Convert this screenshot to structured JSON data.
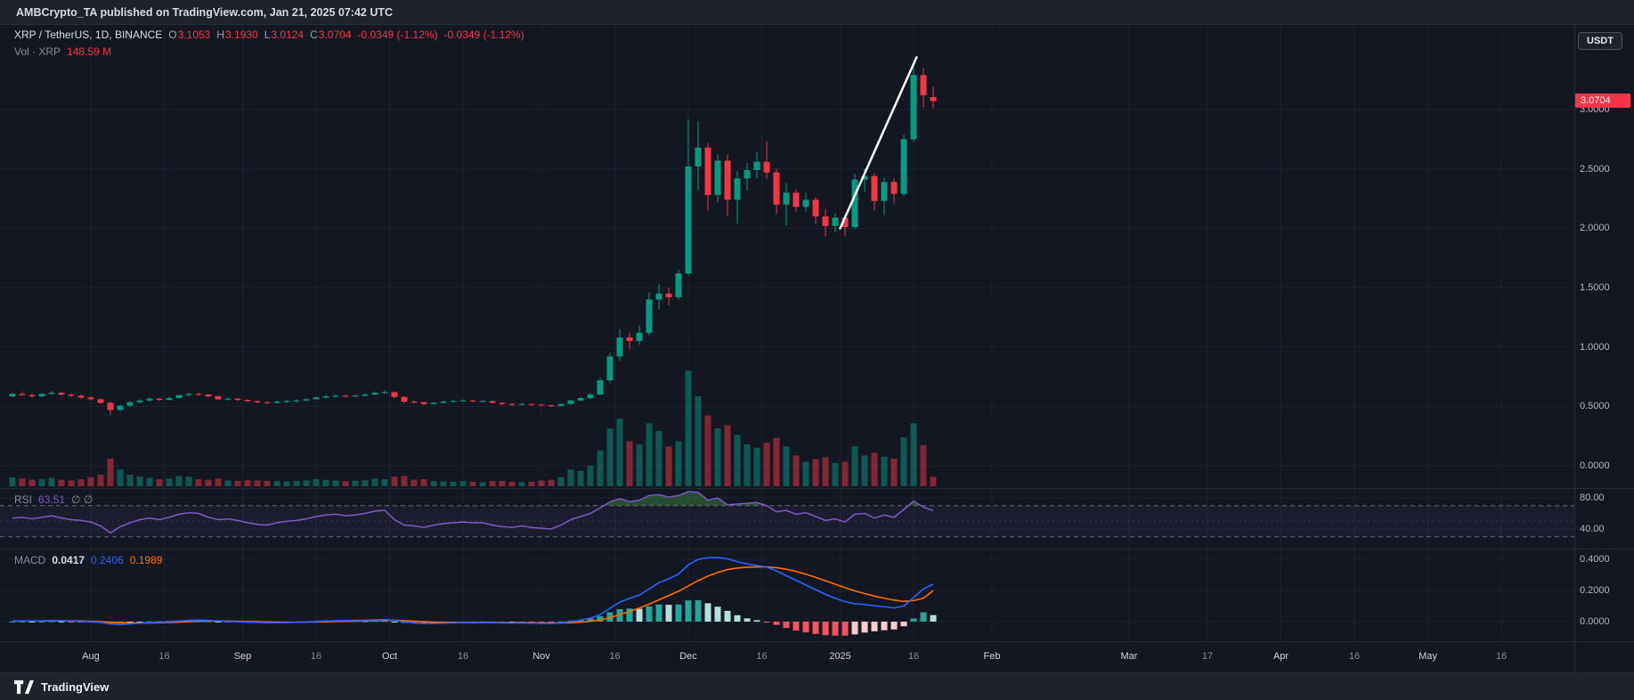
{
  "header": {
    "published_line": "AMBCrypto_TA published on TradingView.com, Jan 21, 2025 07:42 UTC"
  },
  "toolbar": {
    "currency_button": "USDT"
  },
  "legend": {
    "symbol": "XRP / TetherUS, 1D, BINANCE",
    "ohlc": [
      {
        "key": "O",
        "value": "3.1053"
      },
      {
        "key": "H",
        "value": "3.1930"
      },
      {
        "key": "L",
        "value": "3.0124"
      },
      {
        "key": "C",
        "value": "3.0704"
      }
    ],
    "change": "-0.0349 (-1.12%)",
    "change2": "-0.0349 (-1.12%)",
    "volume_label": "Vol · XRP",
    "volume_value": "148.59 M"
  },
  "rsi_panel": {
    "label": "RSI",
    "value": "63.51",
    "na_markers": "∅ ∅",
    "ticks": [
      {
        "text": "80.00",
        "value": 80
      },
      {
        "text": "40.00",
        "value": 40
      }
    ],
    "bands": [
      70,
      30
    ],
    "midline": 50
  },
  "macd_panel": {
    "label": "MACD",
    "histogram_value": "0.0417",
    "macd_value": "0.2406",
    "signal_value": "0.1989",
    "ticks": [
      {
        "text": "0.4000",
        "value": 0.4
      },
      {
        "text": "0.2000",
        "value": 0.2
      },
      {
        "text": "0.0000",
        "value": 0.0
      }
    ]
  },
  "price_scale": {
    "ticks": [
      {
        "text": "3.0000",
        "value": 3.0
      },
      {
        "text": "2.5000",
        "value": 2.5
      },
      {
        "text": "2.0000",
        "value": 2.0
      },
      {
        "text": "1.5000",
        "value": 1.5
      },
      {
        "text": "1.0000",
        "value": 1.0
      },
      {
        "text": "0.5000",
        "value": 0.5
      },
      {
        "text": "0.0000",
        "value": 0.0
      }
    ],
    "last_price_label": "3.0704",
    "last_price": 3.0704
  },
  "time_axis": [
    {
      "text": "Aug",
      "i": 8,
      "major": true
    },
    {
      "text": "16",
      "i": 15.5,
      "major": false
    },
    {
      "text": "Sep",
      "i": 23.5,
      "major": true
    },
    {
      "text": "16",
      "i": 31,
      "major": false
    },
    {
      "text": "Oct",
      "i": 38.5,
      "major": true
    },
    {
      "text": "16",
      "i": 46,
      "major": false
    },
    {
      "text": "Nov",
      "i": 54,
      "major": true
    },
    {
      "text": "16",
      "i": 61.5,
      "major": false
    },
    {
      "text": "Dec",
      "i": 69,
      "major": true
    },
    {
      "text": "16",
      "i": 76.5,
      "major": false
    },
    {
      "text": "2025",
      "i": 84.5,
      "major": true
    },
    {
      "text": "16",
      "i": 92,
      "major": false
    },
    {
      "text": "Feb",
      "i": 100,
      "major": true
    },
    {
      "text": "Mar",
      "i": 114,
      "major": true
    },
    {
      "text": "17",
      "i": 122,
      "major": false
    },
    {
      "text": "Apr",
      "i": 129.5,
      "major": true
    },
    {
      "text": "16",
      "i": 137,
      "major": false
    },
    {
      "text": "May",
      "i": 144.5,
      "major": true
    },
    {
      "text": "16",
      "i": 152,
      "major": false
    }
  ],
  "footer": {
    "brand": "TradingView"
  },
  "colors": {
    "background": "#131722",
    "panel_bar": "#1e222d",
    "grid": "#1c2230",
    "axis_text": "#b2b5be",
    "up": "#089981",
    "down": "#f23645",
    "volume_up": "rgba(8,153,129,0.5)",
    "volume_down": "rgba(242,54,69,0.5)",
    "rsi_line": "#7e57c2",
    "rsi_overbought_fill": "rgba(76,175,80,0.35)",
    "rsi_band_fill": "rgba(126,87,194,0.08)",
    "macd_line": "#2962ff",
    "signal_line": "#ff6d00",
    "macd_hist": {
      "grow_up": "#26a69a",
      "fall_up": "#b2dfdb",
      "fall_down": "#f7525f",
      "grow_down": "#fccbcd"
    },
    "price_tag_bg": "#f23645",
    "trendline": "#ffffff"
  },
  "chart_data": {
    "type": "candlestick",
    "symbol": "XRP/USDT",
    "exchange": "BINANCE",
    "interval": "1D",
    "note": "values estimated from chart pixels; series sampled every ~2 days",
    "sampled_every_days": 2,
    "start_date": "2024-07-16",
    "end_date": "2025-01-21",
    "price_axis_range": [
      0,
      3.7
    ],
    "volume_units": "millions of XRP",
    "volume_max": 1800,
    "candles": [
      [
        0.585,
        0.615,
        0.575,
        0.605,
        140
      ],
      [
        0.605,
        0.625,
        0.59,
        0.595,
        120
      ],
      [
        0.595,
        0.61,
        0.575,
        0.585,
        100
      ],
      [
        0.585,
        0.615,
        0.58,
        0.605,
        110
      ],
      [
        0.605,
        0.63,
        0.6,
        0.615,
        130
      ],
      [
        0.615,
        0.62,
        0.59,
        0.6,
        100
      ],
      [
        0.6,
        0.61,
        0.58,
        0.59,
        90
      ],
      [
        0.59,
        0.6,
        0.565,
        0.575,
        110
      ],
      [
        0.575,
        0.585,
        0.55,
        0.56,
        140
      ],
      [
        0.56,
        0.565,
        0.52,
        0.53,
        180
      ],
      [
        0.53,
        0.54,
        0.425,
        0.47,
        430
      ],
      [
        0.47,
        0.515,
        0.46,
        0.505,
        260
      ],
      [
        0.505,
        0.545,
        0.5,
        0.535,
        180
      ],
      [
        0.535,
        0.56,
        0.525,
        0.55,
        150
      ],
      [
        0.55,
        0.575,
        0.54,
        0.565,
        130
      ],
      [
        0.565,
        0.57,
        0.545,
        0.555,
        110
      ],
      [
        0.555,
        0.58,
        0.55,
        0.57,
        120
      ],
      [
        0.57,
        0.6,
        0.565,
        0.595,
        160
      ],
      [
        0.595,
        0.615,
        0.585,
        0.605,
        150
      ],
      [
        0.605,
        0.615,
        0.59,
        0.6,
        110
      ],
      [
        0.6,
        0.605,
        0.575,
        0.585,
        100
      ],
      [
        0.585,
        0.59,
        0.555,
        0.56,
        120
      ],
      [
        0.56,
        0.575,
        0.55,
        0.565,
        90
      ],
      [
        0.565,
        0.57,
        0.545,
        0.555,
        85
      ],
      [
        0.555,
        0.56,
        0.535,
        0.545,
        95
      ],
      [
        0.545,
        0.55,
        0.525,
        0.535,
        90
      ],
      [
        0.535,
        0.545,
        0.52,
        0.53,
        85
      ],
      [
        0.53,
        0.55,
        0.525,
        0.54,
        80
      ],
      [
        0.54,
        0.555,
        0.53,
        0.545,
        75
      ],
      [
        0.545,
        0.56,
        0.535,
        0.55,
        85
      ],
      [
        0.55,
        0.57,
        0.545,
        0.56,
        95
      ],
      [
        0.56,
        0.585,
        0.555,
        0.575,
        110
      ],
      [
        0.575,
        0.595,
        0.565,
        0.585,
        100
      ],
      [
        0.585,
        0.6,
        0.575,
        0.59,
        90
      ],
      [
        0.59,
        0.6,
        0.575,
        0.585,
        80
      ],
      [
        0.585,
        0.6,
        0.58,
        0.59,
        85
      ],
      [
        0.59,
        0.61,
        0.585,
        0.6,
        95
      ],
      [
        0.6,
        0.625,
        0.595,
        0.615,
        120
      ],
      [
        0.615,
        0.635,
        0.605,
        0.62,
        110
      ],
      [
        0.62,
        0.625,
        0.57,
        0.58,
        150
      ],
      [
        0.58,
        0.585,
        0.53,
        0.54,
        160
      ],
      [
        0.54,
        0.55,
        0.525,
        0.535,
        100
      ],
      [
        0.535,
        0.54,
        0.51,
        0.52,
        110
      ],
      [
        0.52,
        0.535,
        0.515,
        0.53,
        80
      ],
      [
        0.53,
        0.55,
        0.525,
        0.54,
        75
      ],
      [
        0.54,
        0.555,
        0.535,
        0.545,
        70
      ],
      [
        0.545,
        0.56,
        0.54,
        0.55,
        80
      ],
      [
        0.55,
        0.555,
        0.535,
        0.545,
        70
      ],
      [
        0.545,
        0.555,
        0.54,
        0.545,
        60
      ],
      [
        0.545,
        0.55,
        0.525,
        0.53,
        80
      ],
      [
        0.53,
        0.535,
        0.51,
        0.52,
        85
      ],
      [
        0.52,
        0.53,
        0.505,
        0.515,
        70
      ],
      [
        0.515,
        0.53,
        0.51,
        0.52,
        65
      ],
      [
        0.52,
        0.525,
        0.505,
        0.515,
        70
      ],
      [
        0.515,
        0.52,
        0.5,
        0.51,
        90
      ],
      [
        0.51,
        0.515,
        0.495,
        0.505,
        100
      ],
      [
        0.505,
        0.525,
        0.5,
        0.52,
        140
      ],
      [
        0.52,
        0.555,
        0.515,
        0.55,
        260
      ],
      [
        0.55,
        0.58,
        0.545,
        0.57,
        240
      ],
      [
        0.57,
        0.615,
        0.56,
        0.6,
        320
      ],
      [
        0.6,
        0.74,
        0.595,
        0.72,
        560
      ],
      [
        0.72,
        0.95,
        0.7,
        0.92,
        900
      ],
      [
        0.92,
        1.15,
        0.88,
        1.08,
        1050
      ],
      [
        1.08,
        1.12,
        0.98,
        1.05,
        700
      ],
      [
        1.05,
        1.18,
        1.02,
        1.12,
        650
      ],
      [
        1.12,
        1.46,
        1.1,
        1.4,
        980
      ],
      [
        1.4,
        1.53,
        1.32,
        1.45,
        860
      ],
      [
        1.45,
        1.5,
        1.35,
        1.42,
        620
      ],
      [
        1.42,
        1.65,
        1.4,
        1.62,
        700
      ],
      [
        1.62,
        2.92,
        1.6,
        2.52,
        1800
      ],
      [
        2.52,
        2.9,
        2.32,
        2.68,
        1400
      ],
      [
        2.68,
        2.72,
        2.15,
        2.28,
        1100
      ],
      [
        2.28,
        2.62,
        2.22,
        2.57,
        900
      ],
      [
        2.57,
        2.62,
        2.1,
        2.24,
        950
      ],
      [
        2.24,
        2.48,
        2.04,
        2.42,
        800
      ],
      [
        2.42,
        2.55,
        2.32,
        2.49,
        650
      ],
      [
        2.49,
        2.64,
        2.42,
        2.56,
        600
      ],
      [
        2.56,
        2.73,
        2.42,
        2.47,
        680
      ],
      [
        2.47,
        2.5,
        2.12,
        2.2,
        750
      ],
      [
        2.2,
        2.38,
        2.02,
        2.3,
        620
      ],
      [
        2.3,
        2.33,
        2.14,
        2.18,
        480
      ],
      [
        2.18,
        2.3,
        2.14,
        2.24,
        380
      ],
      [
        2.24,
        2.26,
        2.04,
        2.1,
        420
      ],
      [
        2.1,
        2.16,
        1.93,
        2.02,
        450
      ],
      [
        2.02,
        2.13,
        1.97,
        2.09,
        360
      ],
      [
        2.09,
        2.11,
        1.94,
        2.01,
        380
      ],
      [
        2.01,
        2.46,
        1.99,
        2.41,
        620
      ],
      [
        2.41,
        2.5,
        2.31,
        2.44,
        480
      ],
      [
        2.44,
        2.46,
        2.15,
        2.23,
        520
      ],
      [
        2.23,
        2.43,
        2.11,
        2.39,
        460
      ],
      [
        2.39,
        2.42,
        2.21,
        2.29,
        430
      ],
      [
        2.29,
        2.79,
        2.27,
        2.75,
        760
      ],
      [
        2.75,
        3.39,
        2.73,
        3.29,
        980
      ],
      [
        3.29,
        3.35,
        3.02,
        3.12,
        640
      ],
      [
        3.1053,
        3.193,
        3.0124,
        3.0704,
        148.59
      ]
    ],
    "indicators": {
      "rsi": {
        "values": [
          54,
          55,
          53,
          55,
          57,
          54,
          52,
          51,
          49,
          44,
          35,
          43,
          48,
          52,
          54,
          52,
          55,
          59,
          61,
          60,
          55,
          52,
          53,
          51,
          48,
          46,
          45,
          48,
          50,
          51,
          53,
          56,
          58,
          59,
          57,
          58,
          60,
          63,
          64,
          52,
          45,
          44,
          42,
          45,
          47,
          48,
          49,
          48,
          48,
          45,
          43,
          42,
          44,
          42,
          41,
          40,
          45,
          52,
          56,
          60,
          67,
          75,
          79,
          75,
          77,
          83,
          84,
          81,
          83,
          88,
          87,
          77,
          80,
          71,
          72,
          73,
          74,
          70,
          62,
          64,
          59,
          61,
          56,
          51,
          53,
          49,
          59,
          60,
          54,
          58,
          55,
          65,
          76,
          68,
          63.51
        ],
        "last": 63.51,
        "overbought": 70,
        "oversold": 30,
        "range": [
          17,
          91
        ]
      },
      "macd": {
        "macd": [
          0.004,
          0.005,
          0.004,
          0.005,
          0.007,
          0.006,
          0.004,
          0.002,
          -0.001,
          -0.005,
          -0.015,
          -0.018,
          -0.015,
          -0.01,
          -0.006,
          -0.004,
          0,
          0.004,
          0.008,
          0.01,
          0.008,
          0.004,
          0.001,
          -0.001,
          -0.003,
          -0.005,
          -0.007,
          -0.007,
          -0.006,
          -0.004,
          -0.002,
          0.001,
          0.004,
          0.006,
          0.007,
          0.008,
          0.009,
          0.011,
          0.013,
          0.008,
          -0.002,
          -0.008,
          -0.012,
          -0.012,
          -0.01,
          -0.008,
          -0.006,
          -0.005,
          -0.005,
          -0.006,
          -0.008,
          -0.009,
          -0.009,
          -0.01,
          -0.011,
          -0.012,
          -0.008,
          0,
          0.01,
          0.022,
          0.045,
          0.085,
          0.125,
          0.15,
          0.17,
          0.21,
          0.25,
          0.275,
          0.305,
          0.365,
          0.4,
          0.41,
          0.412,
          0.403,
          0.385,
          0.37,
          0.36,
          0.35,
          0.325,
          0.295,
          0.265,
          0.235,
          0.205,
          0.175,
          0.15,
          0.128,
          0.115,
          0.11,
          0.102,
          0.095,
          0.088,
          0.1,
          0.155,
          0.21,
          0.2406
        ],
        "signal": [
          0.003,
          0.004,
          0.004,
          0.004,
          0.005,
          0.005,
          0.005,
          0.004,
          0.002,
          0,
          -0.004,
          -0.007,
          -0.009,
          -0.009,
          -0.008,
          -0.007,
          -0.005,
          -0.003,
          0,
          0.002,
          0.004,
          0.004,
          0.003,
          0.002,
          0.001,
          0,
          -0.002,
          -0.003,
          -0.004,
          -0.004,
          -0.003,
          -0.002,
          -0.001,
          0.001,
          0.002,
          0.003,
          0.005,
          0.006,
          0.008,
          0.008,
          0.006,
          0.003,
          0,
          -0.003,
          -0.004,
          -0.005,
          -0.006,
          -0.006,
          -0.006,
          -0.006,
          -0.006,
          -0.007,
          -0.007,
          -0.008,
          -0.009,
          -0.009,
          -0.009,
          -0.007,
          -0.003,
          0.002,
          0.01,
          0.025,
          0.045,
          0.066,
          0.087,
          0.112,
          0.14,
          0.167,
          0.195,
          0.229,
          0.263,
          0.292,
          0.316,
          0.334,
          0.344,
          0.349,
          0.351,
          0.351,
          0.346,
          0.336,
          0.322,
          0.304,
          0.284,
          0.262,
          0.24,
          0.218,
          0.197,
          0.18,
          0.164,
          0.15,
          0.138,
          0.13,
          0.135,
          0.15,
          0.1989
        ],
        "last_macd": 0.2406,
        "last_signal": 0.1989,
        "last_histogram": 0.0417
      }
    },
    "trendline": {
      "from": {
        "index": 84.5,
        "price": 2.0
      },
      "to": {
        "index": 92.3,
        "price": 3.44
      },
      "color": "#ffffff"
    },
    "last_price": 3.0704
  }
}
